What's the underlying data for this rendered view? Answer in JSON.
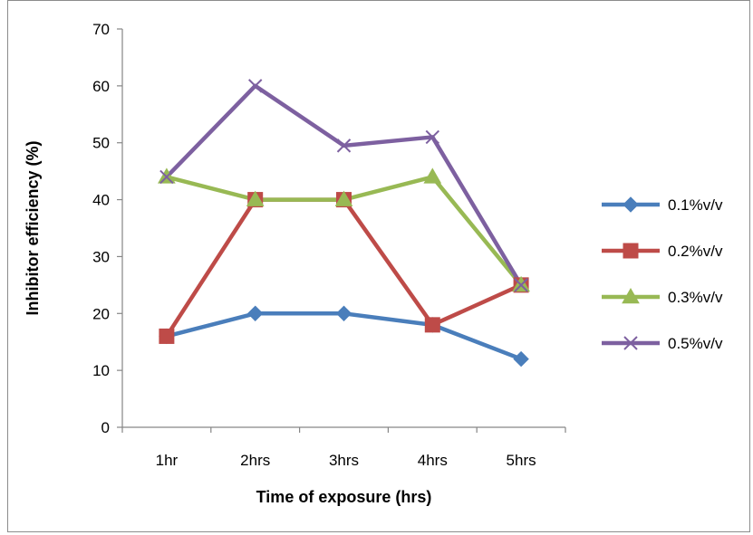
{
  "chart_data": {
    "type": "line",
    "categories": [
      "1hr",
      "2hrs",
      "3hrs",
      "4hrs",
      "5hrs"
    ],
    "series": [
      {
        "name": "0.1%v/v",
        "values": [
          16,
          20,
          20,
          18,
          12
        ],
        "color": "#4a7ebb",
        "marker": "diamond"
      },
      {
        "name": "0.2%v/v",
        "values": [
          16,
          40,
          40,
          18,
          25
        ],
        "color": "#be4b48",
        "marker": "square"
      },
      {
        "name": "0.3%v/v",
        "values": [
          44,
          40,
          40,
          44,
          25
        ],
        "color": "#98b954",
        "marker": "triangle"
      },
      {
        "name": "0.5%v/v",
        "values": [
          44,
          60,
          49.5,
          51,
          25
        ],
        "color": "#7d60a0",
        "marker": "x"
      }
    ],
    "xlabel": "Time of exposure (hrs)",
    "ylabel": "Inhibitor efficiency (%)",
    "ylim": [
      0,
      70
    ],
    "yticks": [
      0,
      10,
      20,
      30,
      40,
      50,
      60,
      70
    ],
    "grid": false,
    "legend": "right"
  }
}
